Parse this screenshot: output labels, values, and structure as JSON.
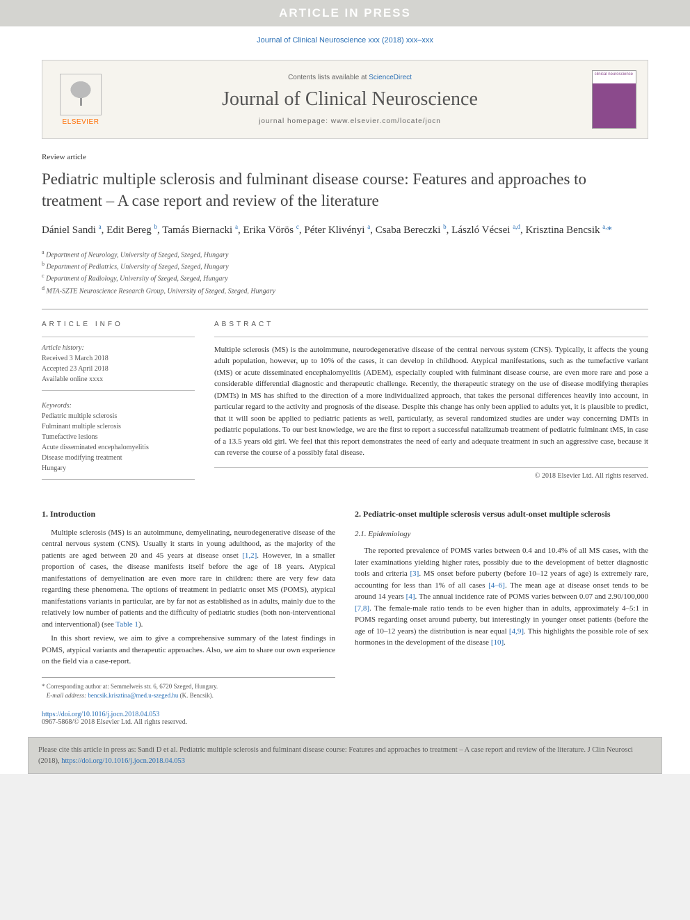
{
  "banner": {
    "text": "ARTICLE IN PRESS"
  },
  "cite_header": {
    "text": "Journal of Clinical Neuroscience xxx (2018) xxx–xxx"
  },
  "journal_box": {
    "publisher": "ELSEVIER",
    "contents_prefix": "Contents lists available at ",
    "contents_link": "ScienceDirect",
    "name": "Journal of Clinical Neuroscience",
    "homepage_label": "journal homepage: www.elsevier.com/locate/jocn",
    "cover_text": "clinical\nneuroscience"
  },
  "article": {
    "type": "Review article",
    "title": "Pediatric multiple sclerosis and fulminant disease course: Features and approaches to treatment – A case report and review of the literature",
    "authors_html": "Dániel Sandi <sup>a</sup>, Edit Bereg <sup>b</sup>, Tamás Biernacki <sup>a</sup>, Erika Vörös <sup>c</sup>, Péter Klivényi <sup>a</sup>, Csaba Bereczki <sup>b</sup>, László Vécsei <sup>a,d</sup>, Krisztina Bencsik <sup>a,</sup><span class=\"star\">*</span>",
    "affiliations": [
      {
        "sup": "a",
        "text": "Department of Neurology, University of Szeged, Szeged, Hungary"
      },
      {
        "sup": "b",
        "text": "Department of Pediatrics, University of Szeged, Szeged, Hungary"
      },
      {
        "sup": "c",
        "text": "Department of Radiology, University of Szeged, Szeged, Hungary"
      },
      {
        "sup": "d",
        "text": "MTA-SZTE Neuroscience Research Group, University of Szeged, Szeged, Hungary"
      }
    ]
  },
  "info": {
    "heading": "ARTICLE INFO",
    "history_label": "Article history:",
    "received": "Received 3 March 2018",
    "accepted": "Accepted 23 April 2018",
    "online": "Available online xxxx",
    "keywords_label": "Keywords:",
    "keywords": [
      "Pediatric multiple sclerosis",
      "Fulminant multiple sclerosis",
      "Tumefactive lesions",
      "Acute disseminated encephalomyelitis",
      "Disease modifying treatment",
      "Hungary"
    ]
  },
  "abstract": {
    "heading": "ABSTRACT",
    "text": "Multiple sclerosis (MS) is the autoimmune, neurodegenerative disease of the central nervous system (CNS). Typically, it affects the young adult population, however, up to 10% of the cases, it can develop in childhood. Atypical manifestations, such as the tumefactive variant (tMS) or acute disseminated encephalomyelitis (ADEM), especially coupled with fulminant disease course, are even more rare and pose a considerable differential diagnostic and therapeutic challenge. Recently, the therapeutic strategy on the use of disease modifying therapies (DMTs) in MS has shifted to the direction of a more individualized approach, that takes the personal differences heavily into account, in particular regard to the activity and prognosis of the disease. Despite this change has only been applied to adults yet, it is plausible to predict, that it will soon be applied to pediatric patients as well, particularly, as several randomized studies are under way concerning DMTs in pediatric populations. To our best knowledge, we are the first to report a successful natalizumab treatment of pediatric fulminant tMS, in case of a 13.5 years old girl. We feel that this report demonstrates the need of early and adequate treatment in such an aggressive case, because it can reverse the course of a possibly fatal disease.",
    "copyright": "© 2018 Elsevier Ltd. All rights reserved."
  },
  "body": {
    "left": {
      "heading": "1. Introduction",
      "p1": "Multiple sclerosis (MS) is an autoimmune, demyelinating, neurodegenerative disease of the central nervous system (CNS). Usually it starts in young adulthood, as the majority of the patients are aged between 20 and 45 years at disease onset [1,2]. However, in a smaller proportion of cases, the disease manifests itself before the age of 18 years. Atypical manifestations of demyelination are even more rare in children: there are very few data regarding these phenomena. The options of treatment in pediatric onset MS (POMS), atypical manifestations variants in particular, are by far not as established as in adults, mainly due to the relatively low number of patients and the difficulty of pediatric studies (both non-interventional and interventional) (see Table 1).",
      "p2": "In this short review, we aim to give a comprehensive summary of the latest findings in POMS, atypical variants and therapeutic approaches. Also, we aim to share our own experience on the field via a case-report.",
      "refs_p1": [
        "[1,2]",
        "Table 1"
      ]
    },
    "right": {
      "heading": "2. Pediatric-onset multiple sclerosis versus adult-onset multiple sclerosis",
      "sub": "2.1. Epidemiology",
      "p1": "The reported prevalence of POMS varies between 0.4 and 10.4% of all MS cases, with the later examinations yielding higher rates, possibly due to the development of better diagnostic tools and criteria [3]. MS onset before puberty (before 10–12 years of age) is extremely rare, accounting for less than 1% of all cases [4–6]. The mean age at disease onset tends to be around 14 years [4]. The annual incidence rate of POMS varies between 0.07 and 2.90/100,000 [7,8]. The female-male ratio tends to be even higher than in adults, approximately 4–5:1 in POMS regarding onset around puberty, but interestingly in younger onset patients (before the age of 10–12 years) the distribution is near equal [4,9]. This highlights the possible role of sex hormones in the development of the disease [10].",
      "refs_p1": [
        "[3]",
        "[4–6]",
        "[4]",
        "[7,8]",
        "[4,9]",
        "[10]"
      ]
    }
  },
  "corresponding": {
    "star": "*",
    "line1": "Corresponding author at: Semmelweis str. 6, 6720 Szeged, Hungary.",
    "email_label": "E-mail address: ",
    "email": "bencsik.krisztina@med.u-szeged.hu",
    "email_name": " (K. Bencsik)."
  },
  "footer": {
    "doi": "https://doi.org/10.1016/j.jocn.2018.04.053",
    "issn_line": "0967-5868/© 2018 Elsevier Ltd. All rights reserved."
  },
  "citation_box": {
    "prefix": "Please cite this article in press as: Sandi D et al. Pediatric multiple sclerosis and fulminant disease course: Features and approaches to treatment – A case report and review of the literature. J Clin Neurosci (2018), ",
    "link": "https://doi.org/10.1016/j.jocn.2018.04.053"
  },
  "colors": {
    "link": "#2a6fb5",
    "banner_bg": "#d4d4d0",
    "journal_bg": "#f6f4ee",
    "cover": "#8b4a8c",
    "publisher_orange": "#ff6c00"
  }
}
